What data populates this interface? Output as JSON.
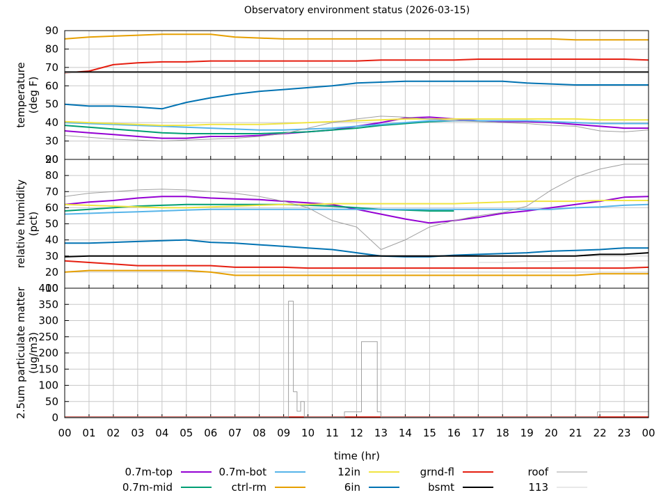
{
  "title": "Observatory environment status (2026-03-15)",
  "xlabel": "time (hr)",
  "xticks": [
    "00",
    "01",
    "02",
    "03",
    "04",
    "05",
    "06",
    "07",
    "08",
    "09",
    "10",
    "11",
    "12",
    "13",
    "14",
    "15",
    "16",
    "17",
    "18",
    "19",
    "20",
    "21",
    "22",
    "23",
    "00"
  ],
  "series_style": [
    {
      "name": "0.7m-top",
      "color": "#9400d3"
    },
    {
      "name": "0.7m-mid",
      "color": "#009e73"
    },
    {
      "name": "0.7m-bot",
      "color": "#56b4e9"
    },
    {
      "name": "ctrl-rm",
      "color": "#e69f00"
    },
    {
      "name": "12in",
      "color": "#f0e442"
    },
    {
      "name": "6in",
      "color": "#0072b2"
    },
    {
      "name": "grnd-fl",
      "color": "#e51e10"
    },
    {
      "name": "bsmt",
      "color": "#000000"
    },
    {
      "name": "roof",
      "color": "#a0a0a0"
    },
    {
      "name": "113",
      "color": "#d0d0d0"
    }
  ],
  "chart_data": [
    {
      "type": "line",
      "panel": "temperature",
      "ylabel_lines": [
        "temperature",
        "(deg F)"
      ],
      "ylim": [
        20,
        90
      ],
      "yticks": [
        20,
        30,
        40,
        50,
        60,
        70,
        80,
        90
      ],
      "x_hours": [
        0,
        1,
        2,
        3,
        4,
        5,
        6,
        7,
        8,
        9,
        10,
        11,
        12,
        13,
        14,
        15,
        16,
        17,
        18,
        19,
        20,
        21,
        22,
        23,
        24
      ],
      "series": [
        {
          "name": "0.7m-top",
          "values": [
            35.5,
            34.5,
            33.5,
            32.5,
            31.5,
            31.5,
            32.5,
            32.5,
            33,
            34,
            35,
            36,
            38,
            40,
            42.5,
            43,
            42,
            41,
            40.5,
            40.5,
            40,
            39,
            38,
            37,
            37
          ]
        },
        {
          "name": "0.7m-mid",
          "values": [
            38.5,
            37.5,
            36.5,
            35.5,
            34.5,
            34,
            34,
            34,
            34,
            34.5,
            35,
            36,
            37,
            38.5,
            39.5,
            40.5,
            41,
            null,
            null,
            null,
            null,
            null,
            null,
            null,
            null
          ]
        },
        {
          "name": "0.7m-bot",
          "values": [
            40,
            39.5,
            39,
            38.5,
            38,
            37.5,
            37,
            36.5,
            36,
            36,
            36.5,
            37,
            38,
            39,
            40,
            41,
            41,
            41,
            41,
            41,
            40.5,
            40,
            39.5,
            39.5,
            39.5
          ]
        },
        {
          "name": "ctrl-rm",
          "values": [
            85.5,
            86.5,
            87,
            87.5,
            88,
            88,
            88,
            86.5,
            86,
            85.5,
            85.5,
            85.5,
            85.5,
            85.5,
            85.5,
            85.5,
            85.5,
            85.5,
            85.5,
            85.5,
            85.5,
            85,
            85,
            85,
            85
          ]
        },
        {
          "name": "12in",
          "values": [
            40.5,
            40,
            39.5,
            39,
            38.5,
            38.5,
            39,
            39,
            39,
            39.5,
            40,
            40.5,
            41,
            41.5,
            42,
            42,
            42,
            42,
            42,
            42,
            42,
            42,
            41.5,
            41.5,
            41.5
          ]
        },
        {
          "name": "6in",
          "values": [
            50,
            49,
            49,
            48.5,
            47.5,
            51,
            53.5,
            55.5,
            57,
            58,
            59,
            60,
            61.5,
            62,
            62.5,
            62.5,
            62.5,
            62.5,
            62.5,
            61.5,
            61,
            60.5,
            60.5,
            60.5,
            60.5
          ]
        },
        {
          "name": "grnd-fl",
          "values": [
            67,
            68,
            71.5,
            72.5,
            73,
            73,
            73.5,
            73.5,
            73.5,
            73.5,
            73.5,
            73.5,
            73.5,
            74,
            74,
            74,
            74,
            74.5,
            74.5,
            74.5,
            74.5,
            74.5,
            74.5,
            74.5,
            74
          ]
        },
        {
          "name": "bsmt",
          "values": [
            67.5,
            67.5,
            67.5,
            67.5,
            67.5,
            67.5,
            67.5,
            67.5,
            67.5,
            67.5,
            67.5,
            67.5,
            67.5,
            67.5,
            67.5,
            67.5,
            67.5,
            67.5,
            67.5,
            67.5,
            67.5,
            67.5,
            67.5,
            67.5,
            67.5
          ]
        },
        {
          "name": "roof",
          "values": [
            33,
            32,
            31,
            30.5,
            30,
            30.5,
            31,
            31.5,
            32.5,
            34,
            37,
            40,
            42,
            43.5,
            43,
            42,
            41,
            40.5,
            40,
            39.5,
            38.5,
            38,
            35.5,
            35,
            36
          ]
        },
        {
          "name": "113",
          "values": [
            67,
            67,
            67,
            67,
            67,
            67,
            67,
            67,
            67,
            67,
            67,
            67,
            67,
            67,
            67,
            67,
            67,
            67,
            67,
            67,
            67,
            67,
            67,
            67,
            67
          ]
        }
      ]
    },
    {
      "type": "line",
      "panel": "relative humidity",
      "ylabel_lines": [
        "relative humidity",
        "(pct)"
      ],
      "ylim": [
        10,
        90
      ],
      "yticks": [
        10,
        20,
        30,
        40,
        50,
        60,
        70,
        80,
        90
      ],
      "x_hours": [
        0,
        1,
        2,
        3,
        4,
        5,
        6,
        7,
        8,
        9,
        10,
        11,
        12,
        13,
        14,
        15,
        16,
        17,
        18,
        19,
        20,
        21,
        22,
        23,
        24
      ],
      "series": [
        {
          "name": "0.7m-top",
          "values": [
            62,
            63.5,
            64.5,
            66,
            67,
            67,
            66,
            65.5,
            65,
            64,
            63,
            62,
            59,
            56,
            53,
            50.5,
            52,
            54,
            56.5,
            58,
            60,
            62,
            64,
            66.5,
            67
          ]
        },
        {
          "name": "0.7m-mid",
          "values": [
            58,
            59,
            60,
            61,
            61.5,
            62,
            62,
            62,
            62,
            62,
            61.5,
            61,
            60,
            59,
            58.5,
            58,
            58,
            null,
            null,
            null,
            null,
            null,
            null,
            null,
            null
          ]
        },
        {
          "name": "0.7m-bot",
          "values": [
            56,
            56.5,
            57,
            57.5,
            58,
            58.5,
            59,
            59,
            59,
            59,
            59,
            59,
            59,
            59,
            59,
            59,
            59,
            59,
            59,
            59,
            59,
            60,
            60.5,
            61.5,
            62
          ]
        },
        {
          "name": "ctrl-rm",
          "values": [
            20,
            21,
            21,
            21,
            21,
            21,
            20,
            18,
            18,
            18,
            18,
            18,
            18,
            18,
            18,
            18,
            18,
            18,
            18,
            18,
            18,
            18,
            19,
            19,
            19
          ]
        },
        {
          "name": "12in",
          "values": [
            62,
            61.5,
            61,
            60.5,
            60,
            60,
            60.5,
            61,
            61.5,
            62,
            62,
            62.5,
            62.5,
            62.5,
            62.5,
            62.5,
            62.5,
            63,
            63.5,
            64,
            64,
            64,
            64.5,
            64.5,
            64.5
          ]
        },
        {
          "name": "6in",
          "values": [
            38,
            38,
            38.5,
            39,
            39.5,
            40,
            38.5,
            38,
            37,
            36,
            35,
            34,
            32,
            30,
            29.5,
            29.5,
            30.5,
            31,
            31.5,
            32,
            33,
            33.5,
            34,
            35,
            35
          ]
        },
        {
          "name": "grnd-fl",
          "values": [
            27,
            26,
            25,
            24,
            24,
            24,
            24,
            23,
            23,
            23,
            22.5,
            22.5,
            22.5,
            22.5,
            22.5,
            22.5,
            22.5,
            22.5,
            22.5,
            22.5,
            22.5,
            22.5,
            22.5,
            22.5,
            23
          ]
        },
        {
          "name": "bsmt",
          "values": [
            29.5,
            30,
            30,
            30,
            30,
            30,
            30,
            30,
            30,
            30,
            30,
            30,
            30,
            30,
            30,
            30,
            30,
            30,
            30,
            30,
            30,
            30,
            31,
            31,
            32
          ]
        },
        {
          "name": "roof",
          "values": [
            67,
            69,
            70,
            71,
            71.5,
            71,
            70,
            69,
            67,
            64,
            60,
            52,
            48,
            34,
            40,
            48,
            52,
            55,
            57,
            61,
            71,
            79,
            84,
            87,
            87
          ]
        },
        {
          "name": "113",
          "values": [
            null,
            null,
            null,
            null,
            null,
            null,
            null,
            null,
            null,
            null,
            null,
            null,
            null,
            null,
            null,
            null,
            null,
            26,
            26,
            26.5,
            26.5,
            27,
            27,
            27,
            27
          ]
        }
      ]
    },
    {
      "type": "line",
      "panel": "2.5um particulate matter",
      "ylabel_lines": [
        "2.5um particulate matter",
        "(ug/m3)"
      ],
      "ylim": [
        0,
        400
      ],
      "yticks": [
        0,
        50,
        100,
        150,
        200,
        250,
        300,
        350,
        400
      ],
      "series": [
        {
          "name": "grnd-fl",
          "x_hours": [
            0,
            24
          ],
          "values": [
            2,
            2
          ]
        },
        {
          "name": "roof",
          "x_hours": [
            0,
            9.2,
            9.2,
            9.4,
            9.4,
            9.55,
            9.55,
            9.7,
            9.7,
            9.85,
            9.85,
            10,
            10,
            11.5,
            11.5,
            12.2,
            12.2,
            12.85,
            12.85,
            13,
            13,
            21.9,
            21.9,
            24
          ],
          "values": [
            2,
            2,
            360,
            360,
            80,
            80,
            20,
            20,
            50,
            50,
            2,
            2,
            2,
            2,
            18,
            18,
            235,
            235,
            18,
            18,
            2,
            2,
            18,
            18
          ]
        }
      ]
    }
  ]
}
